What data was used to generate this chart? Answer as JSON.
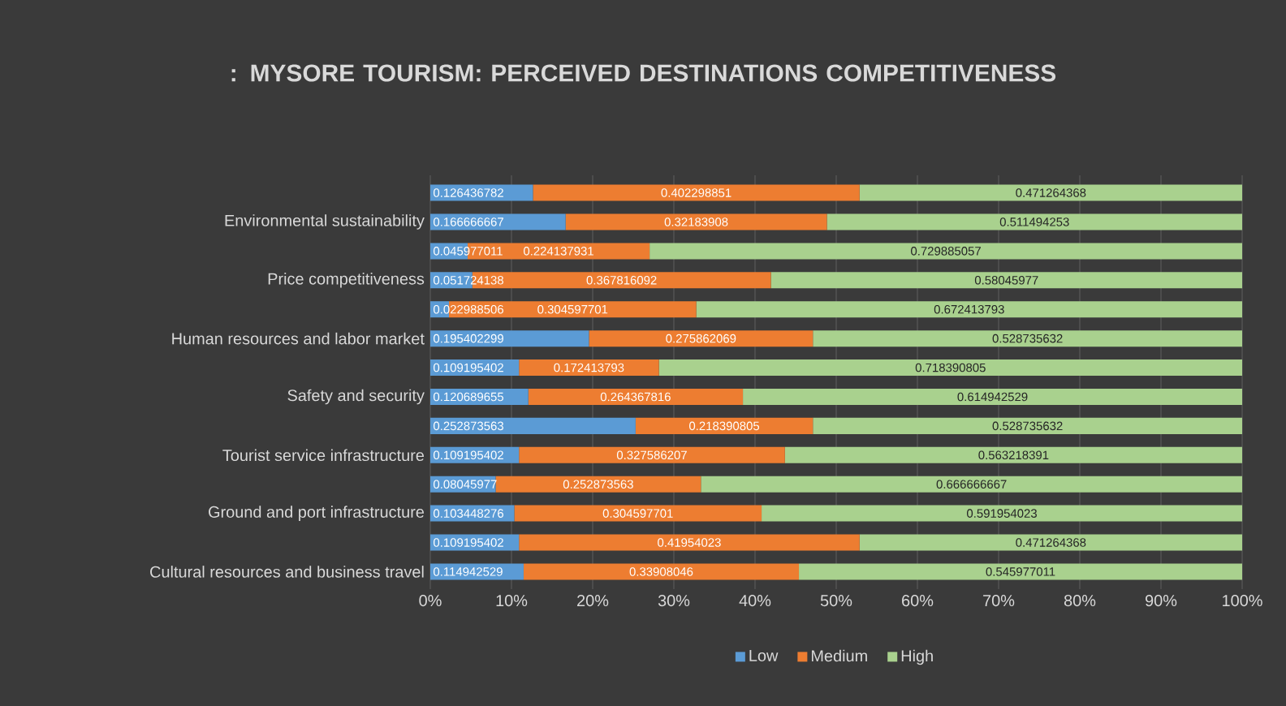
{
  "chart_data": {
    "type": "bar",
    "orientation": "horizontal",
    "stacked": true,
    "data_labels": true,
    "title": ": MYSORE TOURISM: PERCEIVED DESTINATIONS COMPETITIVENESS",
    "categories": [
      null,
      "Environmental sustainability",
      null,
      "Price competitiveness",
      null,
      "Human resources and labor market",
      null,
      "Safety and security",
      null,
      "Tourist service infrastructure",
      null,
      "Ground and port infrastructure",
      null,
      "Cultural resources and business travel"
    ],
    "series": [
      {
        "name": "Low",
        "color": "#5b9bd5",
        "values": [
          0.126436782,
          0.166666667,
          0.045977011,
          0.051724138,
          0.022988506,
          0.195402299,
          0.109195402,
          0.120689655,
          0.252873563,
          0.109195402,
          0.08045977,
          0.103448276,
          0.109195402,
          0.114942529
        ]
      },
      {
        "name": "Medium",
        "color": "#ed7d31",
        "values": [
          0.402298851,
          0.32183908,
          0.224137931,
          0.367816092,
          0.304597701,
          0.275862069,
          0.172413793,
          0.264367816,
          0.218390805,
          0.327586207,
          0.252873563,
          0.304597701,
          0.41954023,
          0.33908046
        ]
      },
      {
        "name": "High",
        "color": "#a9d18e",
        "values": [
          0.471264368,
          0.511494253,
          0.729885057,
          0.58045977,
          0.672413793,
          0.528735632,
          0.718390805,
          0.614942529,
          0.528735632,
          0.563218391,
          0.666666667,
          0.591954023,
          0.471264368,
          0.545977011
        ]
      }
    ],
    "xlim": [
      0,
      1
    ],
    "xticks": [
      {
        "value": 0,
        "label": "0%"
      },
      {
        "value": 0.1,
        "label": "10%"
      },
      {
        "value": 0.2,
        "label": "20%"
      },
      {
        "value": 0.3,
        "label": "30%"
      },
      {
        "value": 0.4,
        "label": "40%"
      },
      {
        "value": 0.5,
        "label": "50%"
      },
      {
        "value": 0.6,
        "label": "60%"
      },
      {
        "value": 0.7,
        "label": "70%"
      },
      {
        "value": 0.8,
        "label": "80%"
      },
      {
        "value": 0.9,
        "label": "90%"
      },
      {
        "value": 1,
        "label": "100%"
      }
    ],
    "grid": "x",
    "legend": "bottom"
  }
}
